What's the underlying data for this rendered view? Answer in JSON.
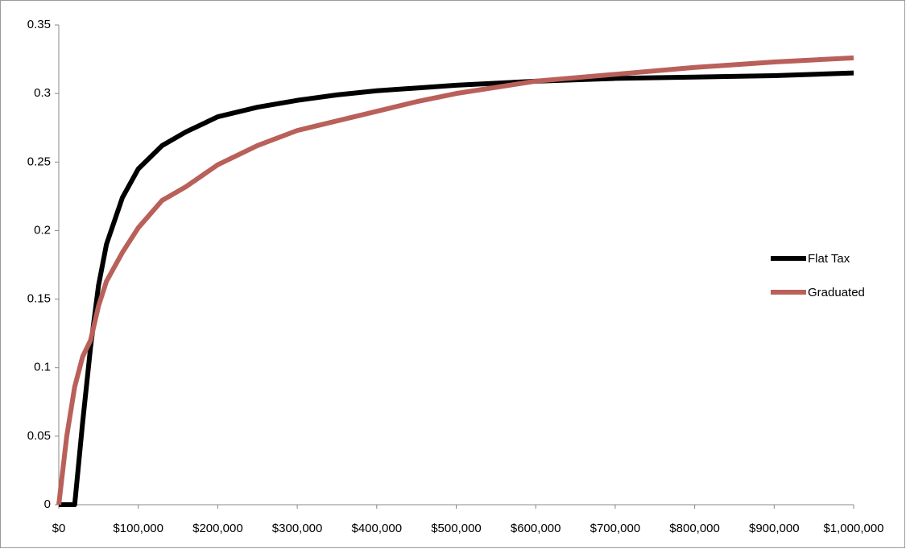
{
  "chart_data": {
    "type": "line",
    "x": [
      0,
      10000,
      20000,
      30000,
      40000,
      50000,
      60000,
      80000,
      100000,
      130000,
      160000,
      200000,
      250000,
      300000,
      350000,
      400000,
      450000,
      500000,
      600000,
      700000,
      800000,
      900000,
      1000000
    ],
    "series": [
      {
        "name": "Flat Tax",
        "color": "#000000",
        "values": [
          0,
          0,
          0,
          0.06,
          0.115,
          0.16,
          0.19,
          0.224,
          0.245,
          0.262,
          0.272,
          0.283,
          0.29,
          0.295,
          0.299,
          0.302,
          0.304,
          0.306,
          0.309,
          0.311,
          0.312,
          0.313,
          0.315
        ]
      },
      {
        "name": "Graduated",
        "color": "#b9605a",
        "values": [
          0,
          0.05,
          0.086,
          0.108,
          0.12,
          0.145,
          0.163,
          0.184,
          0.202,
          0.222,
          0.232,
          0.248,
          0.262,
          0.273,
          0.28,
          0.287,
          0.294,
          0.3,
          0.309,
          0.314,
          0.319,
          0.323,
          0.326
        ]
      }
    ],
    "xlim": [
      0,
      1000000
    ],
    "xticks": [
      {
        "value": 0,
        "label": "$0"
      },
      {
        "value": 100000,
        "label": "$100,000"
      },
      {
        "value": 200000,
        "label": "$200,000"
      },
      {
        "value": 300000,
        "label": "$300,000"
      },
      {
        "value": 400000,
        "label": "$400,000"
      },
      {
        "value": 500000,
        "label": "$500,000"
      },
      {
        "value": 600000,
        "label": "$600,000"
      },
      {
        "value": 700000,
        "label": "$700,000"
      },
      {
        "value": 800000,
        "label": "$800,000"
      },
      {
        "value": 900000,
        "label": "$900,000"
      },
      {
        "value": 1000000,
        "label": "$1,000,000"
      }
    ],
    "ylim": [
      0,
      0.35
    ],
    "yticks": [
      0,
      0.05,
      0.1,
      0.15,
      0.2,
      0.25,
      0.3,
      0.35
    ],
    "legend": "right"
  }
}
